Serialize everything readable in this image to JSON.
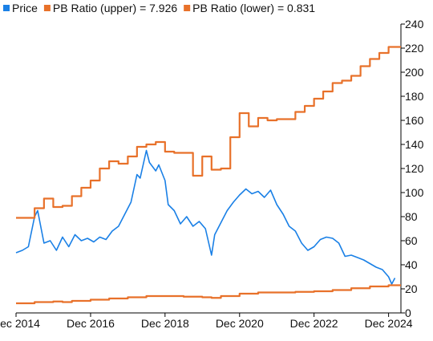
{
  "chart_data": {
    "type": "line",
    "title": "",
    "xlabel": "",
    "ylabel": "",
    "legend_position": "top-left",
    "grid": false,
    "ylim": [
      0,
      240
    ],
    "xlim": [
      "2014-12-01",
      "2025-04-01"
    ],
    "y_ticks": [
      0,
      20,
      40,
      60,
      80,
      100,
      120,
      140,
      160,
      180,
      200,
      220,
      240
    ],
    "x_ticks": [
      {
        "date": "2014-12-01",
        "label": "Dec 2014"
      },
      {
        "date": "2016-12-01",
        "label": "Dec 2016"
      },
      {
        "date": "2018-12-01",
        "label": "Dec 2018"
      },
      {
        "date": "2020-12-01",
        "label": "Dec 2020"
      },
      {
        "date": "2022-12-01",
        "label": "Dec 2022"
      },
      {
        "date": "2024-12-01",
        "label": "Dec 2024"
      }
    ],
    "series": [
      {
        "name": "Price",
        "color": "#1a80e6",
        "style": "line",
        "points": [
          [
            "2014-12-01",
            50
          ],
          [
            "2015-02-01",
            52
          ],
          [
            "2015-04-01",
            55
          ],
          [
            "2015-06-01",
            80
          ],
          [
            "2015-07-01",
            85
          ],
          [
            "2015-09-01",
            58
          ],
          [
            "2015-11-01",
            60
          ],
          [
            "2016-01-01",
            52
          ],
          [
            "2016-03-01",
            63
          ],
          [
            "2016-05-01",
            55
          ],
          [
            "2016-07-01",
            65
          ],
          [
            "2016-09-01",
            60
          ],
          [
            "2016-11-01",
            62
          ],
          [
            "2017-01-01",
            59
          ],
          [
            "2017-03-01",
            63
          ],
          [
            "2017-05-01",
            61
          ],
          [
            "2017-07-01",
            68
          ],
          [
            "2017-09-01",
            72
          ],
          [
            "2017-11-01",
            82
          ],
          [
            "2018-01-01",
            92
          ],
          [
            "2018-03-01",
            115
          ],
          [
            "2018-04-01",
            112
          ],
          [
            "2018-06-01",
            135
          ],
          [
            "2018-07-01",
            125
          ],
          [
            "2018-09-01",
            118
          ],
          [
            "2018-10-01",
            123
          ],
          [
            "2018-12-01",
            110
          ],
          [
            "2019-01-01",
            90
          ],
          [
            "2019-03-01",
            85
          ],
          [
            "2019-05-01",
            74
          ],
          [
            "2019-07-01",
            80
          ],
          [
            "2019-09-01",
            72
          ],
          [
            "2019-11-01",
            76
          ],
          [
            "2020-01-01",
            70
          ],
          [
            "2020-03-01",
            48
          ],
          [
            "2020-04-01",
            65
          ],
          [
            "2020-06-01",
            75
          ],
          [
            "2020-08-01",
            85
          ],
          [
            "2020-10-01",
            92
          ],
          [
            "2020-12-01",
            98
          ],
          [
            "2021-02-01",
            103
          ],
          [
            "2021-04-01",
            99
          ],
          [
            "2021-06-01",
            101
          ],
          [
            "2021-08-01",
            96
          ],
          [
            "2021-10-01",
            102
          ],
          [
            "2021-12-01",
            90
          ],
          [
            "2022-02-01",
            82
          ],
          [
            "2022-04-01",
            72
          ],
          [
            "2022-06-01",
            68
          ],
          [
            "2022-08-01",
            58
          ],
          [
            "2022-10-01",
            52
          ],
          [
            "2022-12-01",
            55
          ],
          [
            "2023-02-01",
            61
          ],
          [
            "2023-04-01",
            63
          ],
          [
            "2023-06-01",
            62
          ],
          [
            "2023-08-01",
            58
          ],
          [
            "2023-10-01",
            47
          ],
          [
            "2023-12-01",
            48
          ],
          [
            "2024-02-01",
            46
          ],
          [
            "2024-04-01",
            44
          ],
          [
            "2024-06-01",
            41
          ],
          [
            "2024-08-01",
            38
          ],
          [
            "2024-10-01",
            36
          ],
          [
            "2024-12-01",
            30
          ],
          [
            "2025-01-01",
            24
          ],
          [
            "2025-02-01",
            29
          ]
        ]
      },
      {
        "name": "PB Ratio (upper) = 7.926",
        "color": "#e8712a",
        "style": "step",
        "points": [
          [
            "2014-12-01",
            79
          ],
          [
            "2015-06-01",
            87
          ],
          [
            "2015-09-01",
            95
          ],
          [
            "2015-12-01",
            88
          ],
          [
            "2016-03-01",
            89
          ],
          [
            "2016-06-01",
            97
          ],
          [
            "2016-09-01",
            104
          ],
          [
            "2016-12-01",
            110
          ],
          [
            "2017-03-01",
            120
          ],
          [
            "2017-06-01",
            126
          ],
          [
            "2017-09-01",
            124
          ],
          [
            "2017-12-01",
            130
          ],
          [
            "2018-03-01",
            138
          ],
          [
            "2018-06-01",
            140
          ],
          [
            "2018-09-01",
            142
          ],
          [
            "2018-12-01",
            134
          ],
          [
            "2019-03-01",
            133
          ],
          [
            "2019-06-01",
            133
          ],
          [
            "2019-09-01",
            114
          ],
          [
            "2019-12-01",
            130
          ],
          [
            "2020-03-01",
            119
          ],
          [
            "2020-06-01",
            120
          ],
          [
            "2020-09-01",
            146
          ],
          [
            "2020-12-01",
            166
          ],
          [
            "2021-03-01",
            155
          ],
          [
            "2021-06-01",
            162
          ],
          [
            "2021-09-01",
            160
          ],
          [
            "2021-12-01",
            161
          ],
          [
            "2022-03-01",
            161
          ],
          [
            "2022-06-01",
            167
          ],
          [
            "2022-09-01",
            172
          ],
          [
            "2022-12-01",
            178
          ],
          [
            "2023-03-01",
            184
          ],
          [
            "2023-06-01",
            191
          ],
          [
            "2023-09-01",
            193
          ],
          [
            "2023-12-01",
            197
          ],
          [
            "2024-03-01",
            205
          ],
          [
            "2024-06-01",
            211
          ],
          [
            "2024-09-01",
            216
          ],
          [
            "2024-12-01",
            221
          ],
          [
            "2025-04-01",
            221
          ]
        ]
      },
      {
        "name": "PB Ratio (lower) = 0.831",
        "color": "#e8712a",
        "style": "step",
        "points": [
          [
            "2014-12-01",
            8
          ],
          [
            "2015-06-01",
            9
          ],
          [
            "2015-12-01",
            9.5
          ],
          [
            "2016-03-01",
            9
          ],
          [
            "2016-06-01",
            10
          ],
          [
            "2016-12-01",
            11
          ],
          [
            "2017-06-01",
            12
          ],
          [
            "2017-12-01",
            13
          ],
          [
            "2018-06-01",
            14
          ],
          [
            "2018-12-01",
            14
          ],
          [
            "2019-06-01",
            13.5
          ],
          [
            "2019-12-01",
            13
          ],
          [
            "2020-03-01",
            12.5
          ],
          [
            "2020-06-01",
            14
          ],
          [
            "2020-12-01",
            16
          ],
          [
            "2021-06-01",
            17
          ],
          [
            "2021-12-01",
            17
          ],
          [
            "2022-06-01",
            17.5
          ],
          [
            "2022-12-01",
            18
          ],
          [
            "2023-06-01",
            19
          ],
          [
            "2023-12-01",
            20.5
          ],
          [
            "2024-06-01",
            22
          ],
          [
            "2024-12-01",
            23
          ],
          [
            "2025-04-01",
            23
          ]
        ]
      }
    ]
  }
}
